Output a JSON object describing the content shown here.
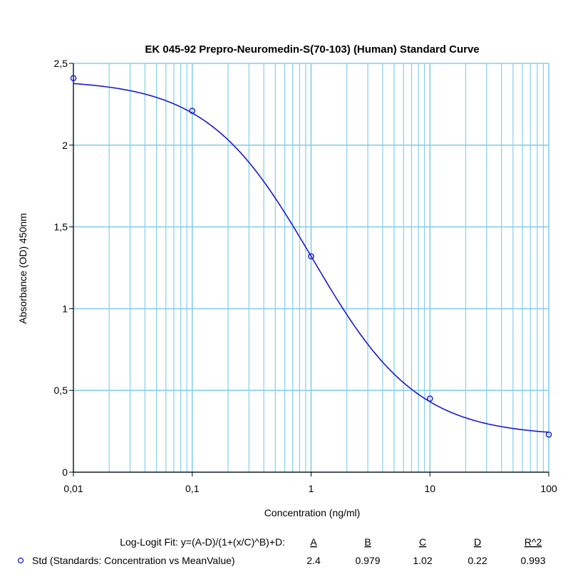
{
  "chart_data": {
    "type": "scatter",
    "title": "EK 045-92 Prepro-Neuromedin-S(70-103) (Human) Standard Curve",
    "xlabel": "Concentration (ng/ml)",
    "ylabel": "Absorbance (OD) 450nm",
    "x_scale": "log",
    "xlim": [
      0.01,
      100
    ],
    "ylim": [
      0,
      2.5
    ],
    "x_ticks": [
      0.01,
      0.1,
      1,
      10,
      100
    ],
    "x_tick_labels": [
      "0,01",
      "0,1",
      "1",
      "10",
      "100"
    ],
    "y_ticks": [
      0,
      0.5,
      1,
      1.5,
      2,
      2.5
    ],
    "y_tick_labels": [
      "0",
      "0,5",
      "1",
      "1,5",
      "2",
      "2,5"
    ],
    "grid": true,
    "grid_color": "#87ceeb",
    "curve_color": "#1a1acc",
    "series": [
      {
        "name": "Std (Standards: Concentration vs MeanValue)",
        "x": [
          0.01,
          0.1,
          1,
          10,
          100
        ],
        "y": [
          2.41,
          2.21,
          1.32,
          0.45,
          0.23
        ]
      }
    ],
    "fit": {
      "label": "Log-Logit Fit: y=(A-D)/(1+(x/C)^B)+D:",
      "param_names": [
        "A",
        "B",
        "C",
        "D",
        "R^2"
      ],
      "param_values": [
        "2.4",
        "0.979",
        "1.02",
        "0.22",
        "0.993"
      ],
      "A": 2.4,
      "B": 0.979,
      "C": 1.02,
      "D": 0.22
    },
    "legend_position": "bottom"
  }
}
